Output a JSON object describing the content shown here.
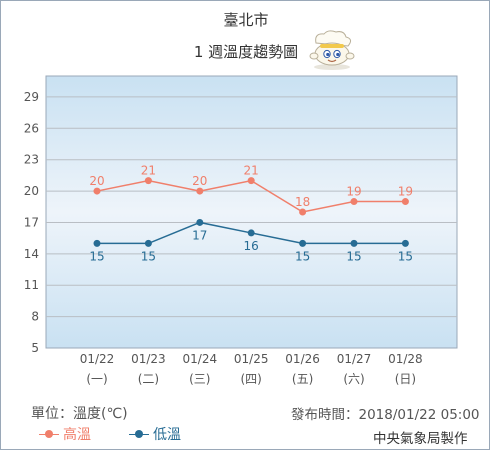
{
  "header": {
    "city": "臺北市",
    "subtitle": "1 週溫度趨勢圖"
  },
  "colors": {
    "high": "#f07f6b",
    "low": "#276c94",
    "plot_top": "#c9e1f2",
    "plot_mid": "#eef4fa",
    "grid": "#b9bec4",
    "axis_text": "#555555"
  },
  "chart_data": {
    "type": "line",
    "categories": [
      "01/22",
      "01/23",
      "01/24",
      "01/25",
      "01/26",
      "01/27",
      "01/28"
    ],
    "weekdays": [
      "(一)",
      "(二)",
      "(三)",
      "(四)",
      "(五)",
      "(六)",
      "(日)"
    ],
    "yticks": [
      5,
      8,
      11,
      14,
      17,
      20,
      23,
      26,
      29
    ],
    "ylim": [
      5,
      31
    ],
    "grid": true,
    "legend_position": "bottom-left",
    "series": [
      {
        "name": "高溫",
        "key": "high",
        "values": [
          20,
          21,
          20,
          21,
          18,
          19,
          19
        ]
      },
      {
        "name": "低溫",
        "key": "low",
        "values": [
          15,
          15,
          17,
          16,
          15,
          15,
          15
        ]
      }
    ]
  },
  "footer": {
    "unit": "單位：溫度(℃)",
    "issued": "發布時間：2018/01/22 05:00",
    "credit": "中央氣象局製作"
  },
  "legend": {
    "high_label": "高溫",
    "low_label": "低溫"
  },
  "icons": {
    "mascot": "weather-mascot-icon"
  }
}
